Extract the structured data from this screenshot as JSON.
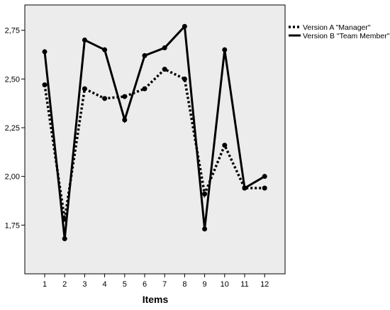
{
  "chart_data": {
    "type": "line",
    "xlabel": "Items",
    "ylabel": "",
    "categories": [
      "1",
      "2",
      "3",
      "4",
      "5",
      "6",
      "7",
      "8",
      "9",
      "10",
      "11",
      "12"
    ],
    "ylim": [
      1.5,
      2.88
    ],
    "yticks": [
      "1,75",
      "2,00",
      "2,25",
      "2,50",
      "2,75"
    ],
    "ytick_values": [
      1.75,
      2.0,
      2.25,
      2.5,
      2.75
    ],
    "grid": false,
    "legend_position": "top-right",
    "plot_background": "#ececec",
    "series": [
      {
        "name": "Version A \"Manager\"",
        "style": "dotted",
        "color": "#000000",
        "values": [
          2.47,
          1.78,
          2.45,
          2.4,
          2.41,
          2.45,
          2.55,
          2.5,
          1.91,
          2.16,
          1.94,
          1.94
        ]
      },
      {
        "name": "Version B \"Team Member\"",
        "style": "solid",
        "color": "#000000",
        "values": [
          2.64,
          1.68,
          2.7,
          2.65,
          2.29,
          2.62,
          2.66,
          2.77,
          1.73,
          2.65,
          1.94,
          2.0
        ]
      }
    ]
  }
}
